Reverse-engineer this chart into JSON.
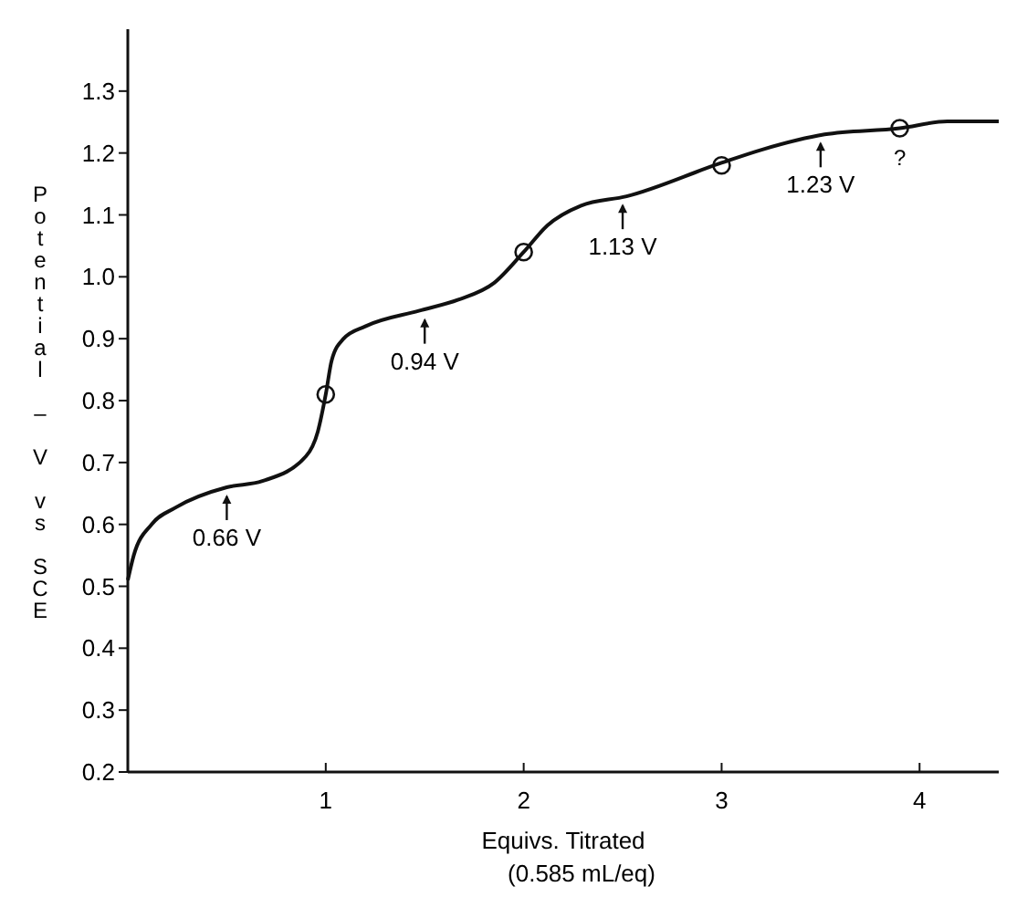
{
  "chart_data": {
    "type": "line",
    "xlabel": "Equivs. Titrated (0.585 mL/eq)",
    "ylabel": "Potential – V vs SCE",
    "xlim": [
      0,
      4.4
    ],
    "ylim": [
      0.2,
      1.4
    ],
    "xticks": [
      1,
      2,
      3,
      4
    ],
    "yticks": [
      0.2,
      0.3,
      0.4,
      0.5,
      0.6,
      0.7,
      0.8,
      0.9,
      {
        "value": 1.0,
        "label": "1.0"
      },
      1.1,
      1.2,
      1.3
    ],
    "grid": false,
    "line_style": "solid",
    "series": [
      {
        "color": "#111111",
        "marker": "none",
        "x": [
          0,
          0.03,
          0.12,
          0.24,
          0.5,
          0.68,
          0.9,
          0.96,
          1.0,
          1.03,
          1.09,
          1.2,
          1.47,
          1.67,
          1.85,
          2.0,
          2.12,
          2.29,
          2.52,
          2.99,
          3.21,
          3.52,
          3.9,
          4.14,
          4.4
        ],
        "values": [
          0.51,
          0.55,
          0.6,
          0.627,
          0.66,
          0.67,
          0.71,
          0.75,
          0.81,
          0.865,
          0.9,
          0.92,
          0.945,
          0.963,
          0.99,
          1.04,
          1.083,
          1.115,
          1.13,
          1.183,
          1.206,
          1.23,
          1.24,
          1.251,
          1.251
        ]
      },
      {
        "type": "scatter",
        "color": "#111111",
        "marker": "circle",
        "x": [
          1,
          2,
          3,
          3.9
        ],
        "values": [
          0.81,
          1.04,
          1.18,
          1.24
        ]
      }
    ],
    "annotations": [
      {
        "text": "0.66 V",
        "x": 0.5,
        "y": 0.66
      },
      {
        "text": "0.94 V",
        "x": 1.5,
        "y": 0.945
      },
      {
        "text": "1.13 V",
        "x": 2.5,
        "y": 1.13
      },
      {
        "text": "1.23 V",
        "x": 3.5,
        "y": 1.23
      },
      {
        "text": "?",
        "x": 3.9,
        "y": 1.24
      }
    ]
  }
}
